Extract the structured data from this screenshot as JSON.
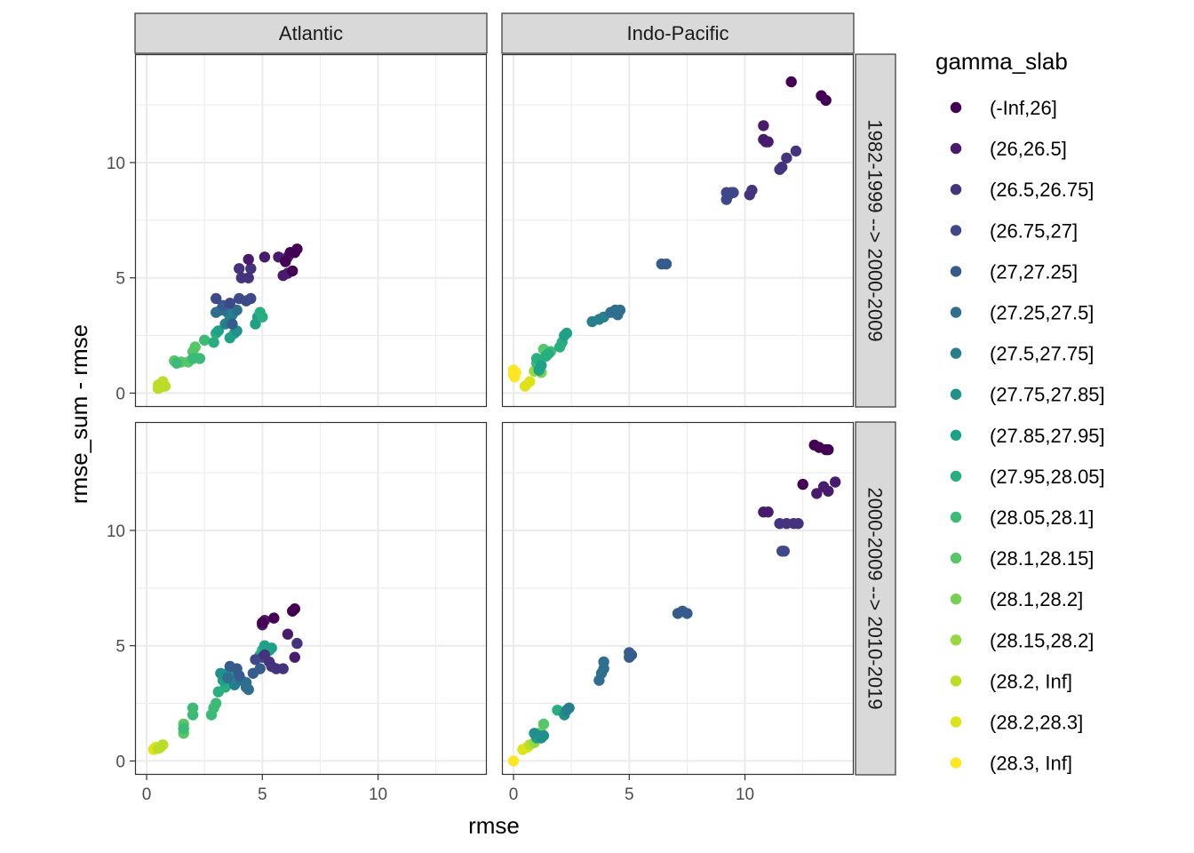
{
  "chart_data": {
    "type": "scatter",
    "xlabel": "rmse",
    "ylabel": "rmse_sum - rmse",
    "xlim": [
      -0.5,
      14.7
    ],
    "ylim": [
      -0.6,
      14.7
    ],
    "x_ticks": [
      0,
      5,
      10
    ],
    "y_ticks": [
      0,
      5,
      10
    ],
    "grid": true,
    "facet_columns": [
      "Atlantic",
      "Indo-Pacific"
    ],
    "facet_rows": [
      "1982-1999 --> 2000-2009",
      "2000-2009 --> 2010-2019"
    ],
    "legend": {
      "title": "gamma_slab",
      "position": "right",
      "entries": [
        {
          "label": "(-Inf,26]",
          "color": "#440154"
        },
        {
          "label": "(26,26.5]",
          "color": "#481B6D"
        },
        {
          "label": "(26.5,26.75]",
          "color": "#46337E"
        },
        {
          "label": "(26.75,27]",
          "color": "#3F4889"
        },
        {
          "label": "(27,27.25]",
          "color": "#365C8D"
        },
        {
          "label": "(27.25,27.5]",
          "color": "#2E6E8E"
        },
        {
          "label": "(27.5,27.75]",
          "color": "#277F8E"
        },
        {
          "label": "(27.75,27.85]",
          "color": "#21908C"
        },
        {
          "label": "(27.85,27.95]",
          "color": "#1FA187"
        },
        {
          "label": "(27.95,28.05]",
          "color": "#29AF7F"
        },
        {
          "label": "(28.05,28.1]",
          "color": "#3BBB75"
        },
        {
          "label": "(28.1,28.15]",
          "color": "#56C667"
        },
        {
          "label": "(28.1,28.2]",
          "color": "#75D054"
        },
        {
          "label": "(28.15,28.2]",
          "color": "#95D840"
        },
        {
          "label": "(28.2, Inf]",
          "color": "#BADE28"
        },
        {
          "label": "(28.2,28.3]",
          "color": "#DDE318"
        },
        {
          "label": "(28.3, Inf]",
          "color": "#FDE725"
        }
      ]
    },
    "panels": [
      {
        "column": "Atlantic",
        "row": "1982-1999 --> 2000-2009",
        "points": [
          [
            0.5,
            0.2,
            14
          ],
          [
            0.6,
            0.25,
            14
          ],
          [
            0.8,
            0.3,
            14
          ],
          [
            0.7,
            0.5,
            14
          ],
          [
            0.5,
            0.35,
            14
          ],
          [
            1.2,
            1.4,
            11
          ],
          [
            1.5,
            1.35,
            11
          ],
          [
            1.8,
            1.35,
            11
          ],
          [
            1.3,
            1.3,
            10
          ],
          [
            2.0,
            1.8,
            11
          ],
          [
            2.1,
            2.0,
            11
          ],
          [
            2.3,
            1.5,
            10
          ],
          [
            2.5,
            2.3,
            10
          ],
          [
            2.0,
            1.5,
            10
          ],
          [
            2.9,
            2.2,
            9
          ],
          [
            3.0,
            2.6,
            9
          ],
          [
            3.1,
            2.7,
            8
          ],
          [
            3.6,
            2.4,
            8
          ],
          [
            3.8,
            2.6,
            8
          ],
          [
            3.9,
            2.7,
            7
          ],
          [
            4.7,
            3.0,
            8
          ],
          [
            4.8,
            3.3,
            8
          ],
          [
            5.0,
            3.3,
            9
          ],
          [
            4.9,
            3.5,
            9
          ],
          [
            3.0,
            3.5,
            5
          ],
          [
            3.2,
            3.6,
            5
          ],
          [
            3.5,
            3.5,
            5
          ],
          [
            3.7,
            3.4,
            6
          ],
          [
            3.4,
            3.0,
            6
          ],
          [
            3.6,
            3.2,
            6
          ],
          [
            3.9,
            3.6,
            5
          ],
          [
            3.7,
            3.0,
            4
          ],
          [
            3.3,
            3.8,
            4
          ],
          [
            3.0,
            4.1,
            3
          ],
          [
            3.6,
            3.9,
            3
          ],
          [
            4.0,
            4.1,
            3
          ],
          [
            4.3,
            4.0,
            3
          ],
          [
            4.5,
            4.1,
            3
          ],
          [
            4.1,
            5.0,
            2
          ],
          [
            4.0,
            5.4,
            2
          ],
          [
            4.4,
            5.0,
            2
          ],
          [
            4.5,
            5.4,
            2
          ],
          [
            4.4,
            5.8,
            1
          ],
          [
            5.1,
            5.9,
            1
          ],
          [
            5.7,
            5.9,
            1
          ],
          [
            6.1,
            5.9,
            1
          ],
          [
            6.2,
            6.1,
            0
          ],
          [
            6.4,
            6.1,
            0
          ],
          [
            6.5,
            6.25,
            0
          ],
          [
            5.9,
            5.1,
            1
          ],
          [
            6.1,
            5.2,
            1
          ],
          [
            6.3,
            5.3,
            0
          ],
          [
            6.0,
            5.7,
            0
          ]
        ]
      },
      {
        "column": "Indo-Pacific",
        "row": "1982-1999 --> 2000-2009",
        "points": [
          [
            0.0,
            0.8,
            16
          ],
          [
            0.0,
            1.0,
            16
          ],
          [
            0.1,
            0.9,
            16
          ],
          [
            0.05,
            0.7,
            16
          ],
          [
            0.5,
            0.3,
            15
          ],
          [
            0.7,
            0.5,
            15
          ],
          [
            0.9,
            0.95,
            13
          ],
          [
            1.2,
            0.9,
            12
          ],
          [
            1.1,
            1.1,
            11
          ],
          [
            1.0,
            1.3,
            10
          ],
          [
            1.3,
            1.9,
            11
          ],
          [
            1.6,
            1.8,
            10
          ],
          [
            1.5,
            1.7,
            9
          ],
          [
            1.0,
            1.5,
            9
          ],
          [
            1.1,
            1.0,
            8
          ],
          [
            1.2,
            1.2,
            8
          ],
          [
            1.4,
            1.6,
            9
          ],
          [
            2.0,
            2.0,
            9
          ],
          [
            2.1,
            2.2,
            9
          ],
          [
            2.3,
            2.6,
            8
          ],
          [
            2.2,
            2.5,
            8
          ],
          [
            3.4,
            3.1,
            6
          ],
          [
            3.7,
            3.2,
            6
          ],
          [
            3.9,
            3.3,
            6
          ],
          [
            4.2,
            3.5,
            5
          ],
          [
            4.4,
            3.6,
            5
          ],
          [
            4.6,
            3.6,
            5
          ],
          [
            4.5,
            3.4,
            5
          ],
          [
            6.4,
            5.6,
            4
          ],
          [
            6.6,
            5.6,
            4
          ],
          [
            9.2,
            8.4,
            3
          ],
          [
            9.3,
            8.6,
            3
          ],
          [
            9.4,
            8.7,
            3
          ],
          [
            9.5,
            8.7,
            3
          ],
          [
            9.2,
            8.7,
            3
          ],
          [
            10.2,
            8.6,
            2
          ],
          [
            10.3,
            8.8,
            2
          ],
          [
            10.8,
            11.6,
            1
          ],
          [
            10.8,
            11.0,
            1
          ],
          [
            10.9,
            10.9,
            1
          ],
          [
            11.0,
            10.9,
            1
          ],
          [
            11.5,
            9.7,
            2
          ],
          [
            11.6,
            9.8,
            2
          ],
          [
            11.8,
            10.2,
            2
          ],
          [
            12.2,
            10.5,
            2
          ],
          [
            12.0,
            13.5,
            0
          ],
          [
            13.3,
            12.9,
            0
          ],
          [
            13.5,
            12.7,
            0
          ]
        ]
      },
      {
        "column": "Atlantic",
        "row": "2000-2009 --> 2010-2019",
        "points": [
          [
            0.3,
            0.5,
            15
          ],
          [
            0.4,
            0.6,
            15
          ],
          [
            0.6,
            0.6,
            14
          ],
          [
            0.7,
            0.7,
            14
          ],
          [
            0.5,
            0.55,
            14
          ],
          [
            1.6,
            1.2,
            11
          ],
          [
            1.6,
            1.6,
            11
          ],
          [
            1.6,
            1.4,
            10
          ],
          [
            2.0,
            2.0,
            10
          ],
          [
            2.0,
            2.3,
            10
          ],
          [
            2.8,
            2.0,
            10
          ],
          [
            2.9,
            2.3,
            10
          ],
          [
            3.0,
            2.5,
            10
          ],
          [
            3.1,
            3.0,
            9
          ],
          [
            3.4,
            3.2,
            9
          ],
          [
            3.3,
            3.5,
            8
          ],
          [
            3.5,
            3.8,
            7
          ],
          [
            3.2,
            3.8,
            7
          ],
          [
            3.8,
            3.9,
            7
          ],
          [
            3.9,
            3.6,
            6
          ],
          [
            3.8,
            3.3,
            6
          ],
          [
            4.3,
            3.2,
            5
          ],
          [
            4.3,
            3.4,
            5
          ],
          [
            4.4,
            3.1,
            5
          ],
          [
            4.1,
            3.5,
            5
          ],
          [
            3.5,
            3.6,
            5
          ],
          [
            3.6,
            4.1,
            4
          ],
          [
            3.9,
            4.0,
            4
          ],
          [
            4.0,
            3.7,
            4
          ],
          [
            4.6,
            3.8,
            4
          ],
          [
            4.9,
            4.0,
            4
          ],
          [
            4.9,
            4.6,
            9
          ],
          [
            5.0,
            4.8,
            9
          ],
          [
            5.1,
            5.0,
            8
          ],
          [
            5.3,
            4.8,
            8
          ],
          [
            5.4,
            4.9,
            8
          ],
          [
            4.7,
            4.4,
            3
          ],
          [
            5.0,
            4.5,
            3
          ],
          [
            5.3,
            4.3,
            2
          ],
          [
            5.1,
            4.6,
            2
          ],
          [
            5.6,
            4.0,
            2
          ],
          [
            5.9,
            4.0,
            2
          ],
          [
            5.4,
            4.1,
            2
          ],
          [
            6.5,
            5.1,
            2
          ],
          [
            6.4,
            4.5,
            1
          ],
          [
            5.0,
            5.9,
            1
          ],
          [
            5.1,
            6.1,
            1
          ],
          [
            5.5,
            6.2,
            0
          ],
          [
            5.0,
            6.0,
            0
          ],
          [
            6.3,
            6.5,
            0
          ],
          [
            6.4,
            6.6,
            0
          ],
          [
            6.1,
            5.5,
            1
          ]
        ]
      },
      {
        "column": "Indo-Pacific",
        "row": "2000-2009 --> 2010-2019",
        "points": [
          [
            0.0,
            0.0,
            16
          ],
          [
            0.4,
            0.5,
            15
          ],
          [
            0.6,
            0.6,
            15
          ],
          [
            0.7,
            0.7,
            14
          ],
          [
            0.9,
            0.8,
            13
          ],
          [
            1.1,
            1.2,
            12
          ],
          [
            1.2,
            1.2,
            12
          ],
          [
            1.3,
            1.6,
            11
          ],
          [
            1.0,
            1.0,
            8
          ],
          [
            1.1,
            1.1,
            8
          ],
          [
            1.2,
            1.0,
            7
          ],
          [
            1.3,
            1.1,
            7
          ],
          [
            0.9,
            1.2,
            7
          ],
          [
            1.9,
            2.2,
            9
          ],
          [
            2.2,
            2.0,
            7
          ],
          [
            2.4,
            2.3,
            6
          ],
          [
            2.3,
            2.2,
            6
          ],
          [
            3.7,
            3.5,
            5
          ],
          [
            3.8,
            3.8,
            5
          ],
          [
            3.9,
            4.3,
            5
          ],
          [
            3.9,
            4.0,
            5
          ],
          [
            5.0,
            4.5,
            4
          ],
          [
            5.0,
            4.7,
            4
          ],
          [
            5.1,
            4.6,
            4
          ],
          [
            7.1,
            6.4,
            4
          ],
          [
            7.3,
            6.5,
            4
          ],
          [
            7.5,
            6.4,
            4
          ],
          [
            11.6,
            9.1,
            3
          ],
          [
            11.7,
            9.1,
            3
          ],
          [
            10.8,
            10.8,
            1
          ],
          [
            11.0,
            10.8,
            1
          ],
          [
            11.5,
            10.3,
            2
          ],
          [
            11.8,
            10.3,
            2
          ],
          [
            12.1,
            10.3,
            2
          ],
          [
            12.3,
            10.3,
            2
          ],
          [
            12.5,
            12.0,
            0
          ],
          [
            13.0,
            13.7,
            0
          ],
          [
            13.2,
            13.6,
            0
          ],
          [
            13.5,
            13.5,
            0
          ],
          [
            13.6,
            13.5,
            0
          ],
          [
            13.1,
            11.6,
            1
          ],
          [
            13.4,
            11.9,
            1
          ],
          [
            13.6,
            11.7,
            1
          ],
          [
            13.9,
            12.1,
            1
          ]
        ]
      }
    ]
  }
}
